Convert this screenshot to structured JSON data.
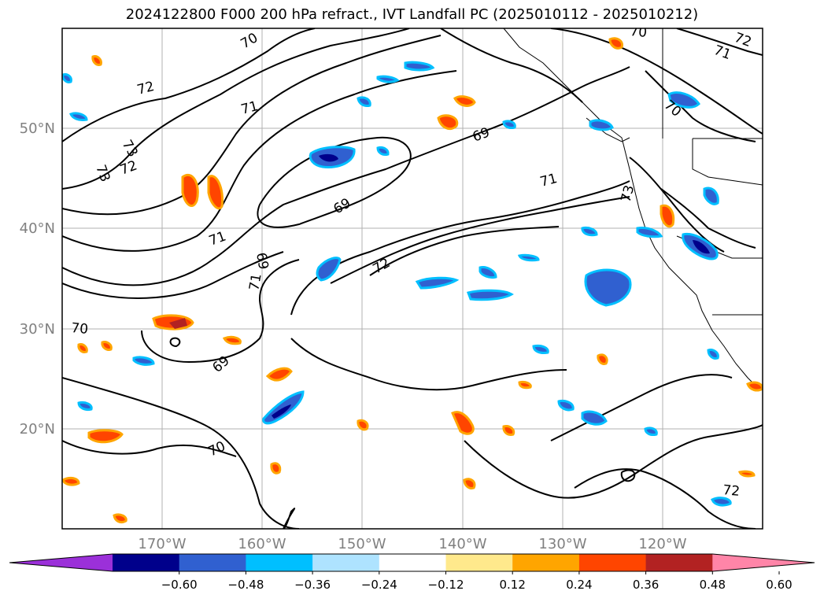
{
  "title": "2024122800 F000 200 hPa refract., IVT Landfall PC (2025010112 - 2025010212)",
  "lat_ticks": [
    "50°N",
    "40°N",
    "30°N",
    "20°N"
  ],
  "lon_ticks": [
    "170°W",
    "160°W",
    "150°W",
    "140°W",
    "130°W",
    "120°W"
  ],
  "contour_labels": [
    "72",
    "71",
    "70",
    "73",
    "73",
    "72",
    "71",
    "69",
    "69",
    "71",
    "69",
    "71",
    "72",
    "70",
    "69",
    "70",
    "73",
    "72",
    "72",
    "71",
    "70",
    "70"
  ],
  "colorbar": {
    "colors": [
      "#9b30d9",
      "#00008b",
      "#3060d0",
      "#00bfff",
      "#aee3ff",
      "#ffffff",
      "#ffe98c",
      "#ffa500",
      "#ff4500",
      "#b22222",
      "#ff85a8"
    ],
    "ticks": [
      "−0.60",
      "−0.48",
      "−0.36",
      "−0.24",
      "−0.12",
      "0.12",
      "0.24",
      "0.36",
      "0.48",
      "0.60"
    ]
  }
}
